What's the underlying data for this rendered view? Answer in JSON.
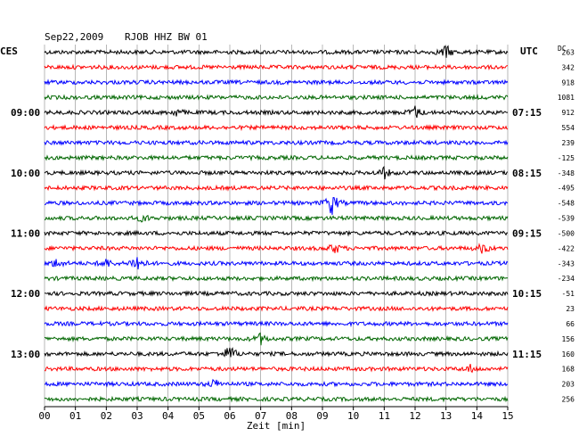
{
  "header": {
    "date": "Sep22,2009",
    "station": "RJOB HHZ BW 01",
    "left_tz": "CES",
    "right_tz": "UTC",
    "dc_label": "DC"
  },
  "chart_data": {
    "type": "line",
    "title": "Sep22,2009  RJOB HHZ BW 01",
    "xlabel": "Zeit [min]",
    "xlim": [
      0,
      15
    ],
    "x_ticks": [
      "00",
      "01",
      "02",
      "03",
      "04",
      "05",
      "06",
      "07",
      "08",
      "09",
      "10",
      "11",
      "12",
      "13",
      "14",
      "15"
    ],
    "grid": true,
    "left_time_labels": [
      {
        "row": 4,
        "label": "09:00"
      },
      {
        "row": 8,
        "label": "10:00"
      },
      {
        "row": 12,
        "label": "11:00"
      },
      {
        "row": 16,
        "label": "12:00"
      },
      {
        "row": 20,
        "label": "13:00"
      }
    ],
    "right_time_labels": [
      {
        "row": 4,
        "label": "07:15"
      },
      {
        "row": 8,
        "label": "08:15"
      },
      {
        "row": 12,
        "label": "09:15"
      },
      {
        "row": 16,
        "label": "10:15"
      },
      {
        "row": 20,
        "label": "11:15"
      }
    ],
    "dc_offsets": [
      "263",
      "342",
      "918",
      "1081",
      "912",
      "554",
      "239",
      "-125",
      "-348",
      "-495",
      "-548",
      "-539",
      "-500",
      "-422",
      "-343",
      "-234",
      "-51",
      "23",
      "66",
      "156",
      "160",
      "168",
      "203",
      "256"
    ],
    "trace_colors": [
      "#000000",
      "#ff0000",
      "#0000ff",
      "#006600"
    ],
    "events": [
      {
        "row": 0,
        "minute": 13.0,
        "amp": 8
      },
      {
        "row": 4,
        "minute": 4.3,
        "amp": 4
      },
      {
        "row": 4,
        "minute": 12.0,
        "amp": 7
      },
      {
        "row": 8,
        "minute": 11.0,
        "amp": 6
      },
      {
        "row": 10,
        "minute": 9.3,
        "amp": 14
      },
      {
        "row": 11,
        "minute": 3.2,
        "amp": 4
      },
      {
        "row": 13,
        "minute": 9.4,
        "amp": 6
      },
      {
        "row": 13,
        "minute": 14.2,
        "amp": 6
      },
      {
        "row": 14,
        "minute": 3.0,
        "amp": 11
      },
      {
        "row": 14,
        "minute": 0.4,
        "amp": 5
      },
      {
        "row": 14,
        "minute": 2.0,
        "amp": 5
      },
      {
        "row": 19,
        "minute": 7.0,
        "amp": 6
      },
      {
        "row": 20,
        "minute": 6.0,
        "amp": 10
      },
      {
        "row": 21,
        "minute": 13.8,
        "amp": 4
      },
      {
        "row": 22,
        "minute": 5.5,
        "amp": 5
      }
    ]
  }
}
